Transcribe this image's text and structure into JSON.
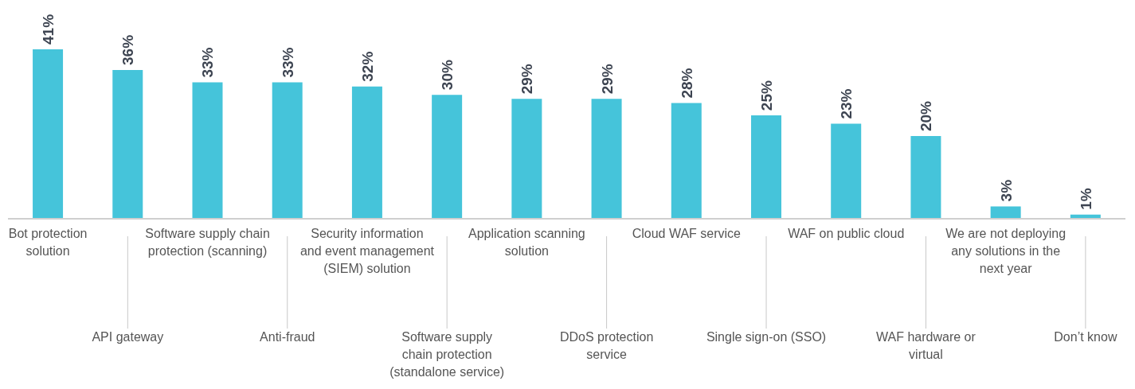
{
  "chart_data": {
    "type": "bar",
    "categories": [
      "Bot protection solution",
      "API gateway",
      "Software supply chain protection (scanning)",
      "Anti-fraud",
      "Security information and event management (SIEM) solution",
      "Software supply chain protection (standalone service)",
      "Application scanning solution",
      "DDoS protection service",
      "Cloud WAF service",
      "Single sign-on (SSO)",
      "WAF on public cloud",
      "WAF hardware or virtual",
      "We are not deploying any solutions in the next year",
      "Don’t know"
    ],
    "values": [
      41,
      36,
      33,
      33,
      32,
      30,
      29,
      29,
      28,
      25,
      23,
      20,
      3,
      1
    ],
    "value_labels": [
      "41%",
      "36%",
      "33%",
      "33%",
      "32%",
      "30%",
      "29%",
      "29%",
      "28%",
      "25%",
      "23%",
      "20%",
      "3%",
      "1%"
    ],
    "color": "#45c4da",
    "grid": false,
    "legend": false
  }
}
